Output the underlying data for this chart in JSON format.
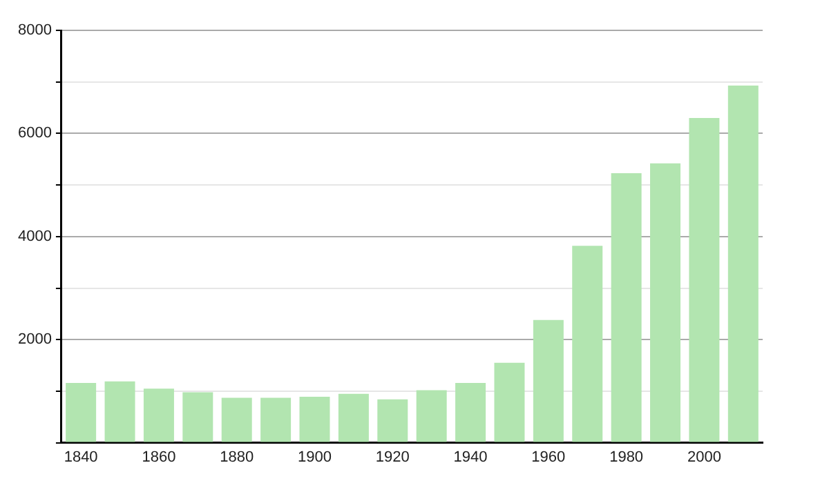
{
  "chart_data": {
    "type": "bar",
    "categories": [
      "1840",
      null,
      "1860",
      null,
      "1880",
      null,
      "1900",
      null,
      "1920",
      null,
      "1940",
      null,
      "1960",
      null,
      "1980",
      null,
      "2000",
      null
    ],
    "values": [
      1160,
      1190,
      1050,
      980,
      870,
      870,
      890,
      950,
      840,
      1020,
      1160,
      1550,
      2380,
      3820,
      5230,
      5420,
      6300,
      6930
    ],
    "color": "#b2e5b0",
    "ylim": [
      0,
      8000
    ],
    "yticks": [
      {
        "value": 0,
        "label": null
      },
      {
        "value": 1000,
        "label": null
      },
      2000,
      {
        "value": 3000,
        "label": null
      },
      4000,
      {
        "value": 5000,
        "label": null
      },
      6000,
      {
        "value": 7000,
        "label": null
      },
      8000
    ],
    "grid": "y",
    "legend": false
  }
}
